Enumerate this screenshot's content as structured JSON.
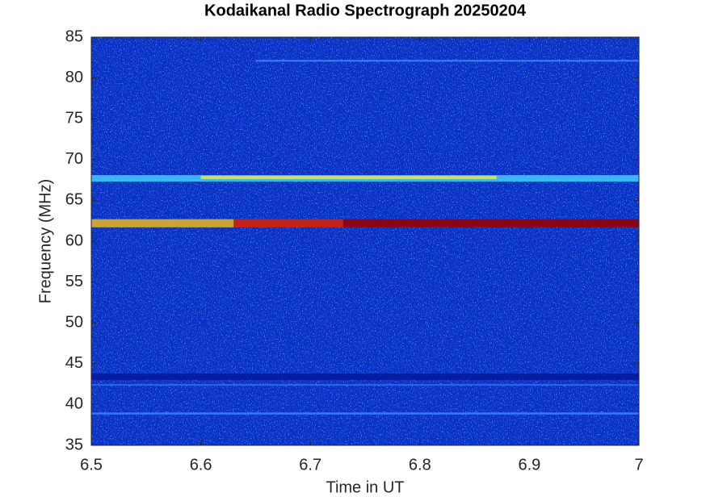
{
  "chart_data": {
    "type": "spectrogram",
    "title": "Kodaikanal Radio Spectrograph  20250204",
    "xlabel": "Time in UT",
    "ylabel": "Frequency (MHz)",
    "xlim": [
      6.5,
      7
    ],
    "ylim": [
      35,
      85
    ],
    "xticks": [
      6.5,
      6.6,
      6.7,
      6.8,
      6.9,
      7
    ],
    "yticks": [
      35,
      40,
      45,
      50,
      55,
      60,
      65,
      70,
      75,
      80,
      85
    ],
    "background": "#0a2fc4",
    "bands": [
      {
        "y": 67.7,
        "thickness": 0.8,
        "x": [
          6.5,
          7
        ],
        "color": "#38c8ff"
      },
      {
        "y": 67.8,
        "thickness": 0.4,
        "x": [
          6.6,
          6.87
        ],
        "color": "#d8e840"
      },
      {
        "y": 62.2,
        "thickness": 1.0,
        "x": [
          6.5,
          6.63
        ],
        "color": "#e0b020"
      },
      {
        "y": 62.2,
        "thickness": 1.0,
        "x": [
          6.63,
          6.73
        ],
        "color": "#d82000"
      },
      {
        "y": 62.2,
        "thickness": 1.0,
        "x": [
          6.73,
          7
        ],
        "color": "#980000"
      },
      {
        "y": 82.1,
        "thickness": 0.2,
        "x": [
          6.65,
          7
        ],
        "color": "#3f88ff"
      },
      {
        "y": 43.4,
        "thickness": 0.8,
        "x": [
          6.5,
          7
        ],
        "color": "#061a9c"
      },
      {
        "y": 42.4,
        "thickness": 0.2,
        "x": [
          6.5,
          7
        ],
        "color": "#2a6cf0"
      },
      {
        "y": 38.9,
        "thickness": 0.25,
        "x": [
          6.5,
          7
        ],
        "color": "#3a80ff"
      }
    ]
  }
}
